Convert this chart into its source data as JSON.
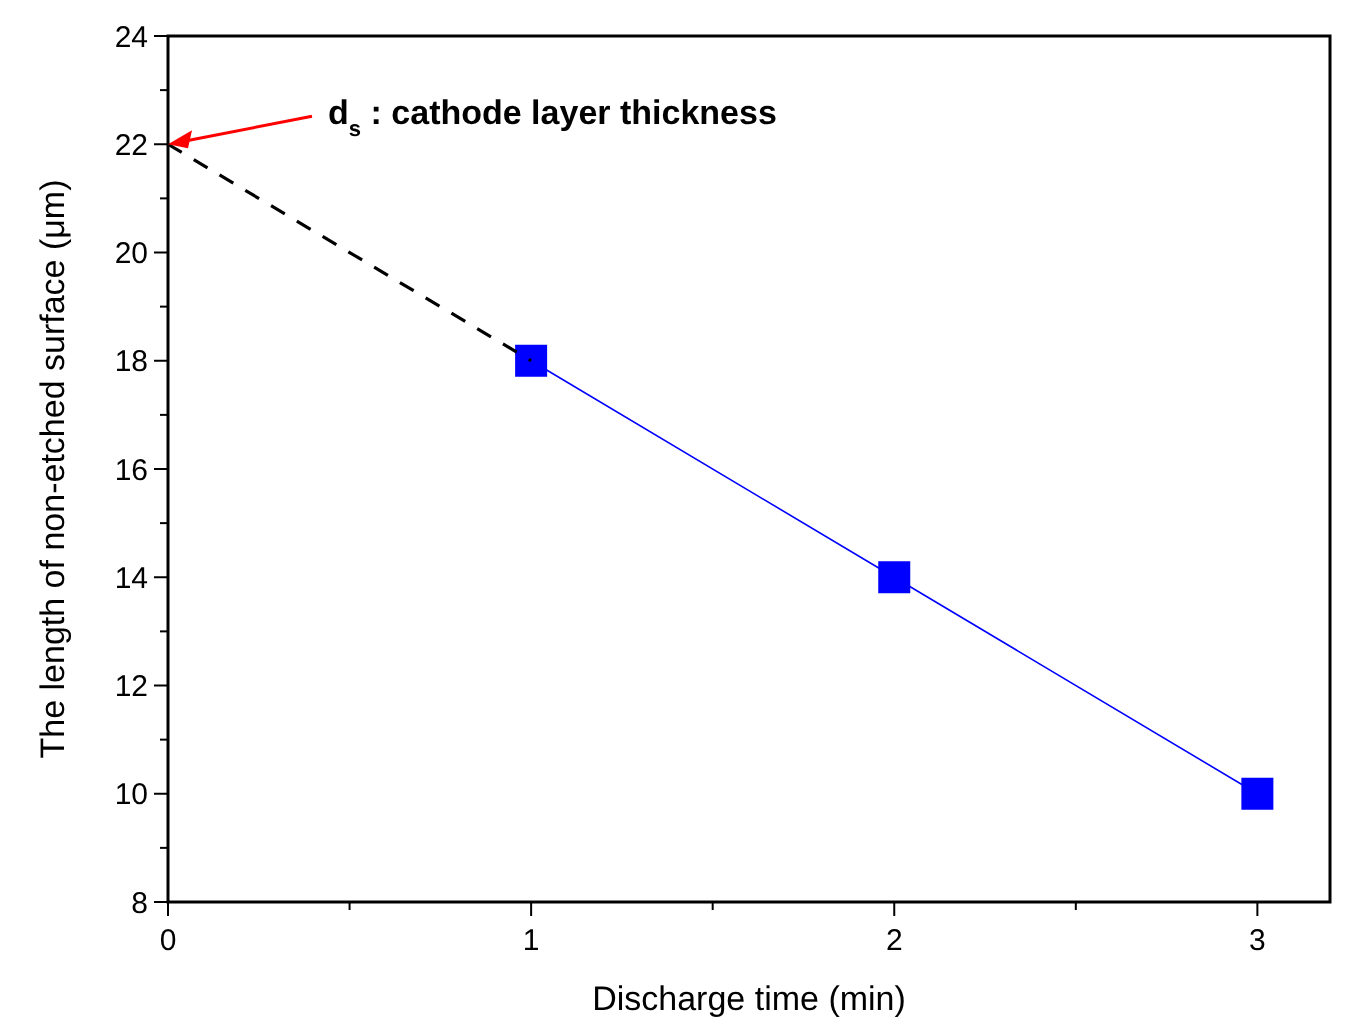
{
  "chart_data": {
    "type": "line",
    "xlabel": "Discharge time (min)",
    "ylabel": "The length of non-etched surface (μm)",
    "xlim": [
      0,
      3.2
    ],
    "xticks": [
      0,
      {
        "value": 0.5,
        "label": null
      },
      1,
      {
        "value": 1.5,
        "label": null
      },
      2,
      {
        "value": 2.5,
        "label": null
      },
      3
    ],
    "ylim": [
      8,
      24
    ],
    "yticks": [
      8,
      {
        "value": 9,
        "label": null
      },
      10,
      {
        "value": 11,
        "label": null
      },
      12,
      {
        "value": 13,
        "label": null
      },
      14,
      {
        "value": 15,
        "label": null
      },
      16,
      {
        "value": 17,
        "label": null
      },
      18,
      {
        "value": 19,
        "label": null
      },
      20,
      {
        "value": 21,
        "label": null
      },
      22,
      {
        "value": 23,
        "label": null
      },
      24
    ],
    "series": [
      {
        "x": [
          1,
          2,
          3
        ],
        "values": [
          18,
          14,
          10
        ],
        "color": "#0000ff",
        "marker": "square",
        "line_style": "solid"
      },
      {
        "x": [
          0,
          1
        ],
        "values": [
          22,
          18
        ],
        "color": "#000000",
        "marker": "none",
        "line_style": "dashed"
      }
    ],
    "annotations": [
      {
        "text": "d$_{s}$ : cathode layer thickness",
        "x": 0,
        "y": 22
      }
    ]
  }
}
